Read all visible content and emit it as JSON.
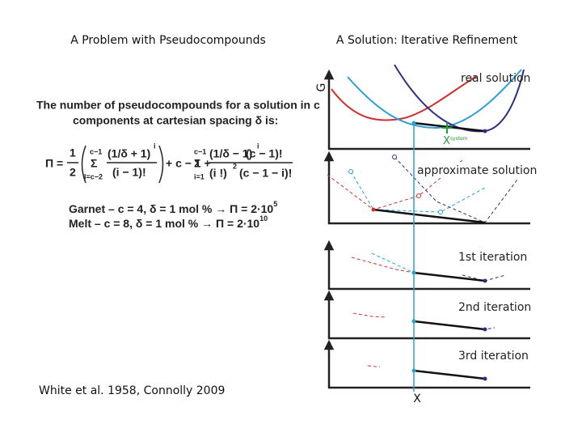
{
  "left": {
    "title": "A Problem with Pseudocompounds",
    "intro": [
      "The number of pseudocompounds for a solution in c",
      "components at cartesian spacing δ is:"
    ],
    "formula": {
      "lhs": "Π =",
      "half_num": "1",
      "half_den": "2",
      "sum1_top": "c−1",
      "sum1_sign": "Σ",
      "sum1_bottom": "l=c−2",
      "term1_num": "(1/δ + 1)",
      "term1_exp": "i",
      "term1_den": "(i − 1)!",
      "middle": "+ c − 1 +",
      "sum2_top": "c−1",
      "sum2_sign": "Σ",
      "sum2_bottom": "i=1",
      "term2_num_a": "(1/δ − 1)",
      "term2_exp": "i",
      "term2_num_b": "(c − 1)!",
      "term2_den_a": "(i !)",
      "term2_den_exp": "2",
      "term2_den_b": "(c − 1 − i)!"
    },
    "examples": [
      {
        "text": "Garnet – c = 4, δ = 1 mol % → Π = 2·10",
        "exponent": "5"
      },
      {
        "text": "Melt – c = 8, δ = 1 mol % → Π = 2·10",
        "exponent": "10"
      }
    ],
    "citation": "White et al. 1958, Connolly 2009"
  },
  "right": {
    "title": "A Solution: Iterative Refinement",
    "g_axis": "G",
    "x_axis": "X",
    "x_system": "X",
    "x_system_sub": "system",
    "panels": [
      "real solution",
      "approximate solution",
      "1st iteration",
      "2nd iteration",
      "3rd iteration"
    ]
  }
}
